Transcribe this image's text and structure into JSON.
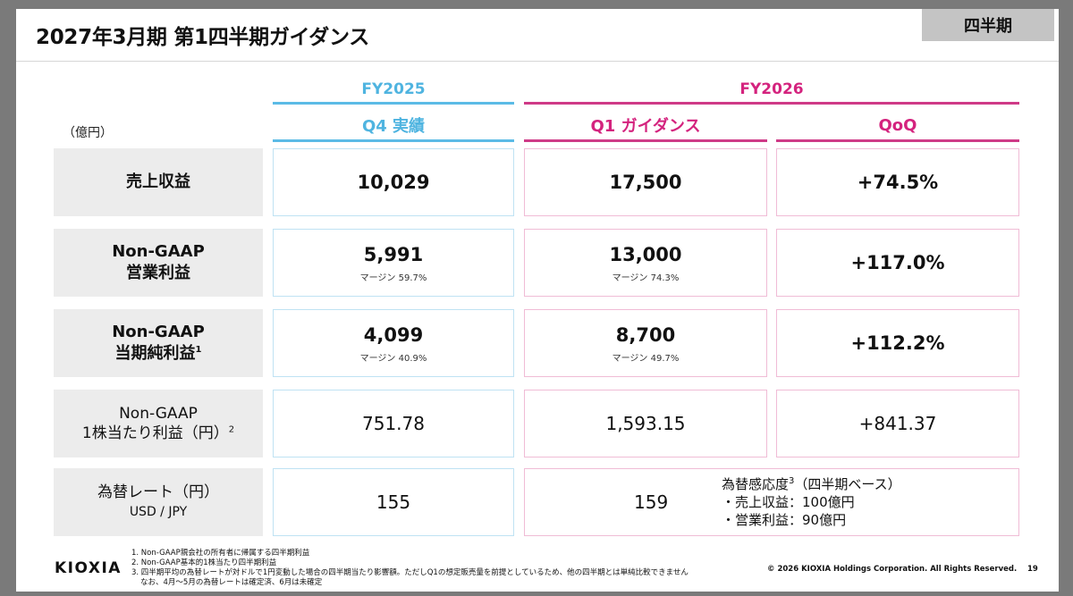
{
  "header": {
    "title": "2027年3月期 第1四半期ガイダンス",
    "badge": "四半期"
  },
  "unit_label": "（億円）",
  "periods": {
    "fy2025": {
      "label": "FY2025",
      "column": "Q4 実績"
    },
    "fy2026": {
      "label": "FY2026",
      "column": "Q1 ガイダンス",
      "qoq": "QoQ"
    }
  },
  "rows": [
    {
      "label": "売上収益",
      "label2": "",
      "sup": "",
      "q4": "10,029",
      "q4_margin": "",
      "q1": "17,500",
      "q1_margin": "",
      "qoq": "+74.5%"
    },
    {
      "label": "Non-GAAP",
      "label2": "営業利益",
      "sup": "",
      "q4": "5,991",
      "q4_margin": "マージン 59.7%",
      "q1": "13,000",
      "q1_margin": "マージン 74.3%",
      "qoq": "+117.0%"
    },
    {
      "label": "Non-GAAP",
      "label2": "当期純利益",
      "sup": "1",
      "q4": "4,099",
      "q4_margin": "マージン 40.9%",
      "q1": "8,700",
      "q1_margin": "マージン 49.7%",
      "qoq": "+112.2%"
    },
    {
      "label": "Non-GAAP",
      "label2": "1株当たり利益（円）",
      "sup": "2",
      "q4": "751.78",
      "q4_margin": "",
      "q1": "1,593.15",
      "q1_margin": "",
      "qoq": "+841.37"
    },
    {
      "label": "為替レート（円）",
      "label2": "USD / JPY",
      "sup": "",
      "q4": "155",
      "q4_margin": "",
      "q1": "159",
      "q1_margin": "",
      "qoq": ""
    }
  ],
  "fx_sensitivity": {
    "title": "為替感応度",
    "sup": "3",
    "title_suffix": "（四半期ベース）",
    "line1": "・売上収益：100億円",
    "line2": "・営業利益：90億円"
  },
  "footer": {
    "logo": "KIOXIA",
    "notes": [
      "1. Non-GAAP親会社の所有者に帰属する四半期利益",
      "2. Non-GAAP基本的1株当たり四半期利益",
      "3. 四半期平均の為替レートが対ドルで1円変動した場合の四半期当たり影響額。ただしQ1の想定販売量を前提としているため、他の四半期とは単純比較できません",
      "なお、4月～5月の為替レートは確定済、6月は未確定"
    ],
    "copyright": "© 2026 KIOXIA Holdings Corporation. All Rights Reserved.",
    "page": "19"
  }
}
